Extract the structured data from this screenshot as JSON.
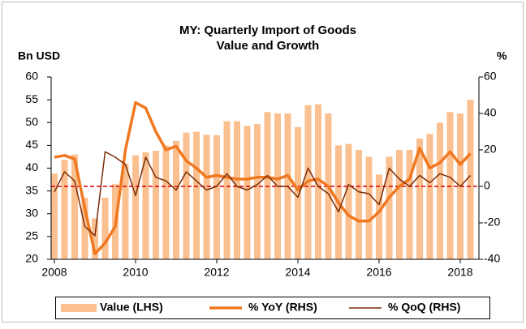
{
  "chart_data": {
    "type": "bar_line_combo",
    "title": [
      "MY: Quarterly Import of Goods",
      "Value and Growth"
    ],
    "y_label": "Bn USD",
    "y2_label": "%",
    "x": [
      2008,
      2008.25,
      2008.5,
      2008.75,
      2009,
      2009.25,
      2009.5,
      2009.75,
      2010,
      2010.25,
      2010.5,
      2010.75,
      2011,
      2011.25,
      2011.5,
      2011.75,
      2012,
      2012.25,
      2012.5,
      2012.75,
      2013,
      2013.25,
      2013.5,
      2013.75,
      2014,
      2014.25,
      2014.5,
      2014.75,
      2015,
      2015.25,
      2015.5,
      2015.75,
      2016,
      2016.25,
      2016.5,
      2016.75,
      2017,
      2017.25,
      2017.5,
      2017.75,
      2018,
      2018.25
    ],
    "xlim": [
      2007.92,
      2018.46
    ],
    "xticks": [
      2008,
      2010,
      2012,
      2014,
      2016,
      2018
    ],
    "ylim": [
      20,
      60
    ],
    "yticks": [
      20,
      25,
      30,
      35,
      40,
      45,
      50,
      55,
      60
    ],
    "y2lim": [
      -40,
      60
    ],
    "y2ticks": [
      -40,
      -20,
      0,
      20,
      40,
      60
    ],
    "reference_line": {
      "axis": "y2",
      "value": 0,
      "color": "#e00000"
    },
    "series": [
      {
        "name": "Value (LHS)",
        "kind": "bar",
        "color": "#fac090",
        "values": [
          38.8,
          41.8,
          43,
          33.5,
          29,
          33.5,
          36.5,
          41,
          42.8,
          43.5,
          43.8,
          45,
          46,
          47.8,
          48,
          47.3,
          47.2,
          50.3,
          50.3,
          49.3,
          49.7,
          52.3,
          52,
          52,
          49,
          53.8,
          54,
          52,
          45,
          45.3,
          44,
          42.5,
          38.6,
          42.5,
          44,
          44,
          46.5,
          47.5,
          50,
          52.3,
          52,
          55
        ]
      },
      {
        "name": "% YoY (RHS)",
        "kind": "line",
        "axis": "y2",
        "color": "#f07820",
        "width": 3.5,
        "values": [
          16,
          17,
          15,
          -12,
          -37,
          -31,
          -22,
          20,
          46,
          43,
          30,
          20,
          22,
          14,
          10,
          5,
          6,
          5,
          4,
          4,
          5,
          5,
          4,
          6,
          -2,
          3,
          4,
          0,
          -9,
          -16,
          -19,
          -19,
          -14,
          -6,
          0,
          4,
          21,
          10,
          13,
          19,
          12,
          18
        ]
      },
      {
        "name": "% QoQ (RHS)",
        "kind": "line",
        "axis": "y2",
        "color": "#7b2c08",
        "width": 1.5,
        "values": [
          -3,
          8,
          3,
          -22,
          -27,
          19,
          16,
          12,
          -5,
          16,
          5,
          3,
          -2,
          8,
          3,
          -2,
          0,
          7,
          0,
          -2,
          1,
          6,
          0,
          0,
          -6,
          10,
          0,
          -4,
          -14,
          1,
          -3,
          -4,
          -10,
          10,
          4,
          0,
          6,
          2,
          7,
          5,
          0,
          6
        ]
      }
    ]
  }
}
